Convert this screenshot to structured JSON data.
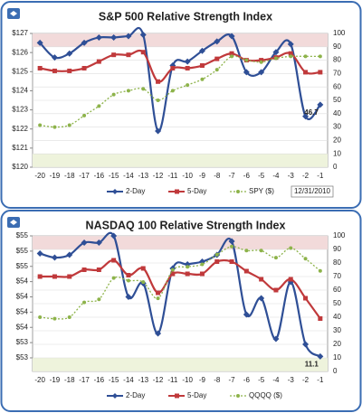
{
  "chart_data": [
    {
      "type": "line",
      "title": "S&P 500 Relative Strength Index",
      "categories": [
        "-20",
        "-19",
        "-18",
        "-17",
        "-16",
        "-15",
        "-14",
        "-13",
        "-12",
        "-11",
        "-10",
        "-9",
        "-8",
        "-7",
        "-6",
        "-5",
        "-4",
        "-3",
        "-2",
        "-1"
      ],
      "series": [
        {
          "name": "2-Day",
          "color": "#2f4f96",
          "axis": "y2",
          "marker": "diamond",
          "values": [
            93,
            82,
            85,
            93,
            97,
            97,
            98,
            99,
            27,
            76,
            79,
            87,
            94,
            98,
            71,
            71,
            86,
            92,
            38,
            46.7
          ],
          "value_labels": [
            null,
            null,
            null,
            null,
            null,
            null,
            null,
            null,
            null,
            null,
            null,
            null,
            null,
            null,
            null,
            null,
            null,
            null,
            null,
            "46.7"
          ]
        },
        {
          "name": "5-Day",
          "color": "#c0393b",
          "axis": "y2",
          "marker": "square",
          "values": [
            74,
            72,
            72,
            74,
            79,
            84,
            84,
            86,
            64,
            74,
            74,
            76,
            81,
            85,
            80,
            80,
            82,
            85,
            71,
            71
          ]
        },
        {
          "name": "SPY ($)",
          "color": "#8db34a",
          "axis": "y",
          "marker": "circle",
          "dash": true,
          "values": [
            122.2,
            122.1,
            122.2,
            122.7,
            123.2,
            123.8,
            124.0,
            124.1,
            123.5,
            124.0,
            124.3,
            124.6,
            125.1,
            125.8,
            125.6,
            125.5,
            125.7,
            125.8,
            125.8,
            125.8
          ]
        }
      ],
      "ylim": [
        120,
        127
      ],
      "yticks": [
        {
          "value": 120,
          "label": "$120"
        },
        {
          "value": 121,
          "label": "$121"
        },
        {
          "value": 122,
          "label": "$122"
        },
        {
          "value": 123,
          "label": "$123"
        },
        {
          "value": 124,
          "label": "$124"
        },
        {
          "value": 125,
          "label": "$125"
        },
        {
          "value": 126,
          "label": "$126"
        },
        {
          "value": 127,
          "label": "$127"
        }
      ],
      "y2lim": [
        0,
        100
      ],
      "y2ticks": [
        0,
        10,
        20,
        30,
        40,
        50,
        60,
        70,
        80,
        90,
        100
      ],
      "bands": [
        {
          "from": 90,
          "to": 100,
          "color": "#f2dada"
        },
        {
          "from": 0,
          "to": 10,
          "color": "#eef3dc"
        }
      ],
      "date": "12/31/2010"
    },
    {
      "type": "line",
      "title": "NASDAQ 100 Relative Strength Index",
      "categories": [
        "-20",
        "-19",
        "-18",
        "-17",
        "-16",
        "-15",
        "-14",
        "-13",
        "-12",
        "-11",
        "-10",
        "-9",
        "-8",
        "-7",
        "-6",
        "-5",
        "-4",
        "-3",
        "-2",
        "-1"
      ],
      "series": [
        {
          "name": "2-Day",
          "color": "#2f4f96",
          "axis": "y2",
          "marker": "diamond",
          "values": [
            87,
            84,
            86,
            95,
            95,
            100,
            55,
            65,
            28,
            76,
            79,
            81,
            86,
            96,
            42,
            54,
            24,
            66,
            20,
            11.1
          ],
          "value_labels": [
            null,
            null,
            null,
            null,
            null,
            null,
            null,
            null,
            null,
            null,
            null,
            null,
            null,
            null,
            null,
            null,
            null,
            null,
            null,
            "11.1"
          ]
        },
        {
          "name": "5-Day",
          "color": "#c0393b",
          "axis": "y2",
          "marker": "square",
          "values": [
            70,
            70,
            70,
            75,
            75,
            82,
            71,
            76,
            58,
            72,
            72,
            72,
            81,
            81,
            74,
            68,
            60,
            68,
            54,
            39
          ]
        },
        {
          "name": "QQQQ ($)",
          "color": "#8db34a",
          "axis": "y",
          "marker": "circle",
          "dash": true,
          "values": [
            53.7,
            53.67,
            53.7,
            53.99,
            54.05,
            54.47,
            54.42,
            54.39,
            54.07,
            54.63,
            54.69,
            54.74,
            54.93,
            55.09,
            55.01,
            55.01,
            54.87,
            55.06,
            54.85,
            54.61
          ]
        }
      ],
      "ylim": [
        52.633,
        55.3
      ],
      "yticks": [
        {
          "value": 52.9,
          "label": "$53"
        },
        {
          "value": 53.2,
          "label": "$53"
        },
        {
          "value": 53.5,
          "label": "$54"
        },
        {
          "value": 53.8,
          "label": "$54"
        },
        {
          "value": 54.1,
          "label": "$54"
        },
        {
          "value": 54.4,
          "label": "$54"
        },
        {
          "value": 54.7,
          "label": "$55"
        },
        {
          "value": 55.0,
          "label": "$55"
        },
        {
          "value": 55.3,
          "label": "$55"
        }
      ],
      "y2lim": [
        0,
        100
      ],
      "y2ticks": [
        0,
        10,
        20,
        30,
        40,
        50,
        60,
        70,
        80,
        90,
        100
      ],
      "bands": [
        {
          "from": 90,
          "to": 100,
          "color": "#f2dada"
        },
        {
          "from": 0,
          "to": 10,
          "color": "#eef3dc"
        }
      ]
    }
  ]
}
